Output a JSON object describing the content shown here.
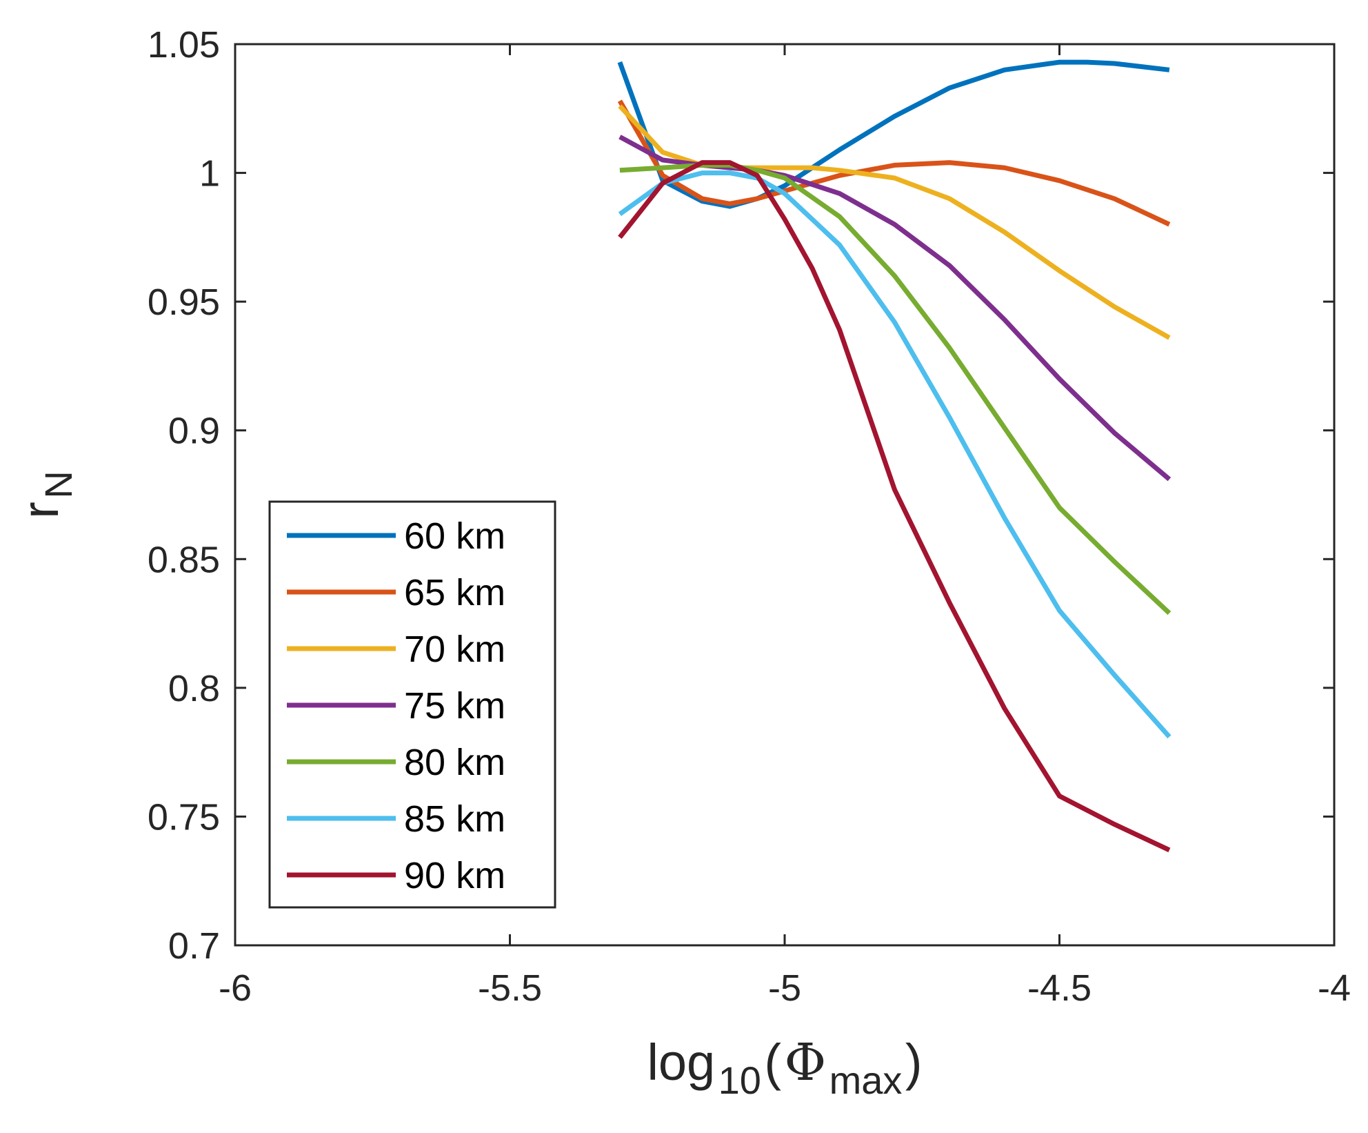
{
  "chart_data": {
    "type": "line",
    "xlabel": "log",
    "xlabel_sub": "10",
    "xlabel_paren_open": "(",
    "xlabel_symbol": "Φ",
    "xlabel_symbol_sub": "max",
    "xlabel_paren_close": ")",
    "ylabel": "r",
    "ylabel_sub": "N",
    "xlim": [
      -6,
      -4
    ],
    "ylim": [
      0.7,
      1.05
    ],
    "xticks": [
      -6,
      -5.5,
      -5,
      -4.5,
      -4
    ],
    "xtick_labels": [
      "-6",
      "-5.5",
      "-5",
      "-4.5",
      "-4"
    ],
    "yticks": [
      0.7,
      0.75,
      0.8,
      0.85,
      0.9,
      0.95,
      1,
      1.05
    ],
    "ytick_labels": [
      "0.7",
      "0.75",
      "0.8",
      "0.85",
      "0.9",
      "0.95",
      "1",
      "1.05"
    ],
    "grid": false,
    "legend_position": "bottom-left",
    "series": [
      {
        "name": "60 km",
        "color": "#0072BD",
        "x": [
          -5.3,
          -5.222,
          -5.15,
          -5.1,
          -5.05,
          -5.0,
          -4.9,
          -4.8,
          -4.7,
          -4.6,
          -4.5,
          -4.45,
          -4.4,
          -4.3
        ],
        "y": [
          1.043,
          0.997,
          0.989,
          0.987,
          0.99,
          0.995,
          1.009,
          1.022,
          1.033,
          1.04,
          1.043,
          1.043,
          1.0425,
          1.04
        ]
      },
      {
        "name": "65 km",
        "color": "#D95319",
        "x": [
          -5.3,
          -5.222,
          -5.15,
          -5.1,
          -5.05,
          -5.0,
          -4.9,
          -4.8,
          -4.7,
          -4.6,
          -4.5,
          -4.4,
          -4.3
        ],
        "y": [
          1.028,
          0.999,
          0.99,
          0.988,
          0.99,
          0.993,
          0.999,
          1.003,
          1.004,
          1.002,
          0.997,
          0.99,
          0.98
        ]
      },
      {
        "name": "70 km",
        "color": "#EDB120",
        "x": [
          -5.3,
          -5.222,
          -5.15,
          -5.1,
          -5.05,
          -5.0,
          -4.95,
          -4.9,
          -4.8,
          -4.7,
          -4.6,
          -4.5,
          -4.4,
          -4.3
        ],
        "y": [
          1.026,
          1.008,
          1.003,
          1.002,
          1.002,
          1.002,
          1.002,
          1.001,
          0.998,
          0.99,
          0.977,
          0.962,
          0.948,
          0.936
        ]
      },
      {
        "name": "75 km",
        "color": "#7E2F8E",
        "x": [
          -5.3,
          -5.222,
          -5.15,
          -5.1,
          -5.05,
          -5.0,
          -4.9,
          -4.8,
          -4.7,
          -4.6,
          -4.5,
          -4.4,
          -4.3
        ],
        "y": [
          1.014,
          1.005,
          1.003,
          1.002,
          1.001,
          0.999,
          0.992,
          0.98,
          0.964,
          0.943,
          0.92,
          0.899,
          0.881
        ]
      },
      {
        "name": "80 km",
        "color": "#77AC30",
        "x": [
          -5.3,
          -5.222,
          -5.15,
          -5.1,
          -5.05,
          -5.0,
          -4.9,
          -4.8,
          -4.7,
          -4.6,
          -4.5,
          -4.4,
          -4.3
        ],
        "y": [
          1.001,
          1.002,
          1.003,
          1.003,
          1.001,
          0.998,
          0.983,
          0.96,
          0.932,
          0.901,
          0.87,
          0.849,
          0.829
        ]
      },
      {
        "name": "85 km",
        "color": "#4DBEEE",
        "x": [
          -5.3,
          -5.222,
          -5.15,
          -5.1,
          -5.05,
          -5.0,
          -4.9,
          -4.8,
          -4.7,
          -4.6,
          -4.5,
          -4.4,
          -4.3
        ],
        "y": [
          0.984,
          0.996,
          1.0,
          1.0,
          0.998,
          0.992,
          0.972,
          0.942,
          0.905,
          0.866,
          0.83,
          0.805,
          0.781
        ]
      },
      {
        "name": "90 km",
        "color": "#A2142F",
        "x": [
          -5.3,
          -5.222,
          -5.15,
          -5.1,
          -5.05,
          -5.0,
          -4.95,
          -4.9,
          -4.8,
          -4.7,
          -4.6,
          -4.5,
          -4.4,
          -4.3
        ],
        "y": [
          0.975,
          0.996,
          1.004,
          1.004,
          0.999,
          0.982,
          0.963,
          0.939,
          0.877,
          0.833,
          0.792,
          0.758,
          0.747,
          0.737
        ]
      }
    ]
  }
}
